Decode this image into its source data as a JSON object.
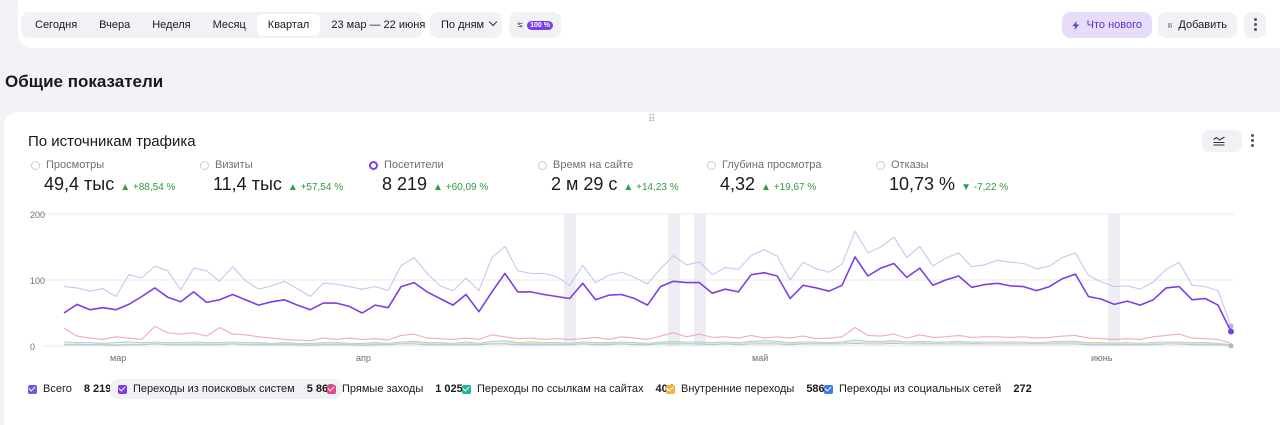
{
  "toolbar": {
    "periods": [
      "Сегодня",
      "Вчера",
      "Неделя",
      "Месяц",
      "Квартал"
    ],
    "active_period": "Квартал",
    "date_range": "23 мар — 22 июня",
    "grouping": "По дням",
    "sampling_badge": "100 %",
    "whats_new": "Что нового",
    "add": "Добавить"
  },
  "page_title": "Общие показатели",
  "card": {
    "title": "По источникам трафика",
    "metrics": [
      {
        "label": "Просмотры",
        "value": "49,4 тыс",
        "delta": "▲ +88,54 %"
      },
      {
        "label": "Визиты",
        "value": "11,4 тыс",
        "delta": "▲ +57,54 %"
      },
      {
        "label": "Посетители",
        "value": "8 219",
        "delta": "▲ +60,09 %",
        "selected": true
      },
      {
        "label": "Время на сайте",
        "value": "2 м 29 с",
        "delta": "▲ +14,23 %"
      },
      {
        "label": "Глубина просмотра",
        "value": "4,32",
        "delta": "▲ +19,67 %"
      },
      {
        "label": "Отказы",
        "value": "10,73 %",
        "delta": "▼ -7,22 %"
      }
    ],
    "legend": [
      {
        "label": "Всего",
        "count": "8 219",
        "color": "#6a5bd6"
      },
      {
        "label": "Переходы из поисковых систем",
        "count": "5 867",
        "color": "#7b3fe4"
      },
      {
        "label": "Прямые заходы",
        "count": "1 025",
        "color": "#e8488b"
      },
      {
        "label": "Переходы по ссылкам на сайтах",
        "count": "404",
        "color": "#21b59a"
      },
      {
        "label": "Внутренние переходы",
        "count": "586",
        "color": "#f2b33d"
      },
      {
        "label": "Переходы из социальных сетей",
        "count": "272",
        "color": "#3d7be8"
      }
    ]
  },
  "chart_data": {
    "type": "line",
    "y_ticks": [
      "200",
      "100",
      "0"
    ],
    "ylim": [
      0,
      200
    ],
    "x_tick_labels": [
      "мар",
      "апр",
      "май",
      "июнь"
    ],
    "series": [
      {
        "name": "Переходы из поисковых систем",
        "color": "#7b3fe4",
        "values": [
          50,
          63,
          55,
          58,
          55,
          63,
          75,
          88,
          74,
          67,
          82,
          66,
          70,
          78,
          70,
          62,
          67,
          70,
          62,
          55,
          65,
          65,
          60,
          50,
          62,
          58,
          90,
          96,
          82,
          72,
          62,
          78,
          52,
          82,
          110,
          82,
          82,
          78,
          75,
          72,
          95,
          70,
          77,
          78,
          72,
          62,
          90,
          98,
          96,
          96,
          80,
          86,
          82,
          108,
          111,
          106,
          72,
          92,
          88,
          83,
          92,
          135,
          106,
          118,
          125,
          104,
          118,
          92,
          100,
          106,
          89,
          93,
          95,
          91,
          90,
          84,
          90,
          102,
          109,
          75,
          71,
          63,
          68,
          62,
          70,
          88,
          90,
          70,
          72,
          62,
          22
        ]
      },
      {
        "name": "Всего",
        "color": "#c9c6ee",
        "values": [
          90,
          88,
          83,
          87,
          75,
          108,
          103,
          121,
          114,
          85,
          118,
          114,
          98,
          120,
          99,
          86,
          91,
          98,
          87,
          75,
          95,
          94,
          90,
          86,
          90,
          84,
          122,
          134,
          110,
          91,
          84,
          103,
          84,
          134,
          151,
          114,
          110,
          110,
          105,
          92,
          122,
          96,
          107,
          112,
          104,
          94,
          117,
          137,
          123,
          127,
          108,
          119,
          116,
          137,
          146,
          136,
          100,
          127,
          117,
          112,
          124,
          174,
          141,
          150,
          165,
          134,
          151,
          121,
          133,
          141,
          120,
          123,
          130,
          127,
          125,
          117,
          121,
          134,
          141,
          107,
          97,
          90,
          91,
          86,
          97,
          116,
          127,
          92,
          90,
          84,
          30
        ]
      },
      {
        "name": "Прямые заходы",
        "color": "#f4a9bb",
        "values": [
          27,
          15,
          12,
          10,
          14,
          12,
          10,
          30,
          20,
          18,
          20,
          15,
          28,
          18,
          17,
          14,
          12,
          10,
          9,
          8,
          12,
          10,
          12,
          10,
          11,
          9,
          16,
          18,
          12,
          11,
          10,
          12,
          10,
          17,
          14,
          11,
          12,
          10,
          11,
          10,
          11,
          13,
          10,
          14,
          12,
          10,
          15,
          20,
          14,
          18,
          13,
          14,
          12,
          16,
          12,
          14,
          12,
          15,
          11,
          12,
          14,
          28,
          16,
          15,
          18,
          12,
          17,
          13,
          14,
          16,
          13,
          14,
          14,
          13,
          14,
          12,
          13,
          15,
          16,
          12,
          11,
          10,
          11,
          10,
          14,
          16,
          18,
          12,
          11,
          10,
          4
        ]
      },
      {
        "name": "Переходы по ссылкам на сайтах",
        "color": "#9fd9cf",
        "values": [
          6,
          5,
          5,
          4,
          5,
          6,
          5,
          6,
          5,
          5,
          6,
          5,
          5,
          6,
          5,
          5,
          4,
          5,
          4,
          4,
          5,
          5,
          4,
          4,
          5,
          4,
          6,
          7,
          5,
          5,
          4,
          6,
          4,
          7,
          8,
          5,
          6,
          5,
          5,
          4,
          6,
          5,
          5,
          6,
          5,
          4,
          6,
          7,
          6,
          6,
          5,
          6,
          5,
          7,
          8,
          7,
          5,
          6,
          6,
          5,
          6,
          9,
          7,
          7,
          8,
          6,
          7,
          6,
          6,
          7,
          6,
          6,
          6,
          6,
          6,
          5,
          6,
          7,
          7,
          5,
          5,
          4,
          5,
          4,
          5,
          6,
          6,
          5,
          5,
          4,
          2
        ]
      },
      {
        "name": "Внутренние переходы",
        "color": "#f7d99a",
        "values": [
          3,
          3,
          2,
          3,
          2,
          3,
          3,
          4,
          3,
          3,
          4,
          3,
          3,
          4,
          3,
          3,
          3,
          3,
          3,
          2,
          3,
          3,
          3,
          2,
          3,
          3,
          4,
          5,
          4,
          3,
          3,
          4,
          3,
          4,
          5,
          4,
          4,
          4,
          3,
          3,
          4,
          3,
          4,
          4,
          3,
          3,
          4,
          5,
          4,
          4,
          3,
          4,
          4,
          5,
          5,
          5,
          4,
          4,
          4,
          4,
          5,
          6,
          5,
          5,
          6,
          5,
          5,
          4,
          5,
          5,
          4,
          5,
          5,
          5,
          5,
          4,
          5,
          5,
          5,
          4,
          4,
          3,
          4,
          3,
          4,
          5,
          5,
          4,
          3,
          3,
          1
        ]
      },
      {
        "name": "Переходы из социальных сетей",
        "color": "#a9c5f3",
        "values": [
          2,
          2,
          2,
          2,
          1,
          2,
          2,
          3,
          2,
          2,
          2,
          2,
          2,
          3,
          2,
          2,
          2,
          2,
          2,
          1,
          2,
          2,
          2,
          1,
          2,
          2,
          3,
          3,
          2,
          2,
          2,
          2,
          2,
          3,
          3,
          2,
          2,
          2,
          2,
          2,
          3,
          2,
          2,
          3,
          2,
          2,
          3,
          3,
          3,
          3,
          2,
          3,
          2,
          3,
          3,
          3,
          2,
          3,
          3,
          3,
          3,
          4,
          3,
          3,
          4,
          3,
          3,
          3,
          3,
          3,
          3,
          3,
          3,
          3,
          3,
          3,
          3,
          3,
          3,
          2,
          2,
          2,
          2,
          2,
          2,
          3,
          3,
          2,
          2,
          2,
          1
        ]
      }
    ]
  }
}
